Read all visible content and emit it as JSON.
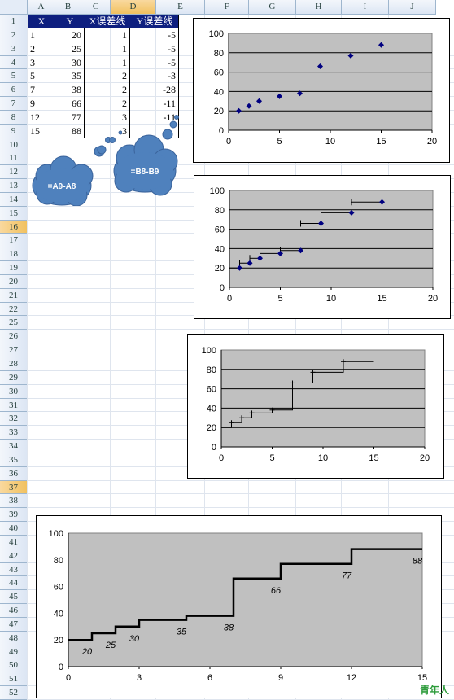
{
  "columns": [
    "A",
    "B",
    "C",
    "D",
    "E",
    "F",
    "G",
    "H",
    "I",
    "J"
  ],
  "selected_column": "D",
  "selected_rows": [
    "16",
    "37"
  ],
  "rows": [
    "1",
    "2",
    "3",
    "4",
    "5",
    "6",
    "7",
    "8",
    "9",
    "10",
    "11",
    "12",
    "13",
    "14",
    "15",
    "16",
    "17",
    "18",
    "19",
    "20",
    "21",
    "22",
    "25",
    "26",
    "27",
    "28",
    "29",
    "30",
    "31",
    "32",
    "33",
    "34",
    "35",
    "36",
    "37",
    "38",
    "39",
    "40",
    "41",
    "42",
    "43",
    "44",
    "45",
    "46",
    "47",
    "48",
    "49",
    "50",
    "51",
    "52"
  ],
  "table": {
    "headers": [
      "X",
      "Y",
      "X误差线",
      "Y误差线"
    ],
    "rows": [
      [
        "1",
        "20",
        "1",
        "-5"
      ],
      [
        "2",
        "25",
        "1",
        "-5"
      ],
      [
        "3",
        "30",
        "1",
        "-5"
      ],
      [
        "5",
        "35",
        "2",
        "-3"
      ],
      [
        "7",
        "38",
        "2",
        "-28"
      ],
      [
        "9",
        "66",
        "2",
        "-11"
      ],
      [
        "12",
        "77",
        "3",
        "-11"
      ],
      [
        "15",
        "88",
        "3",
        ""
      ]
    ]
  },
  "callouts": {
    "left": "=A9-A8",
    "right": "=B8-B9"
  },
  "colors": {
    "header_fill": "#0e1f7f",
    "plot_area": "#c0c0c0",
    "marker": "#000080",
    "callout": "#4f81bd"
  },
  "chart_data": [
    {
      "type": "scatter",
      "x": [
        1,
        2,
        3,
        5,
        7,
        9,
        12,
        15
      ],
      "y": [
        20,
        25,
        30,
        35,
        38,
        66,
        77,
        88
      ],
      "xlim": [
        0,
        20
      ],
      "ylim": [
        0,
        100
      ],
      "xticks": [
        "0",
        "5",
        "10",
        "15",
        "20"
      ],
      "yticks": [
        "0",
        "20",
        "40",
        "60",
        "80",
        "100"
      ],
      "grid": true
    },
    {
      "type": "scatter",
      "x": [
        1,
        2,
        3,
        5,
        7,
        9,
        12,
        15
      ],
      "y": [
        20,
        25,
        30,
        35,
        38,
        66,
        77,
        88
      ],
      "x_error_minus": [
        1,
        1,
        1,
        2,
        2,
        2,
        3,
        3
      ],
      "xlim": [
        0,
        20
      ],
      "ylim": [
        0,
        100
      ],
      "xticks": [
        "0",
        "5",
        "10",
        "15",
        "20"
      ],
      "yticks": [
        "0",
        "20",
        "40",
        "60",
        "80",
        "100"
      ],
      "grid": true
    },
    {
      "type": "line",
      "step_x": [
        0,
        1,
        2,
        3,
        5,
        7,
        9,
        12,
        15
      ],
      "step_y": [
        20,
        25,
        30,
        35,
        38,
        66,
        77,
        88,
        88
      ],
      "xlim": [
        0,
        20
      ],
      "ylim": [
        0,
        100
      ],
      "xticks": [
        "0",
        "5",
        "10",
        "15",
        "20"
      ],
      "yticks": [
        "0",
        "20",
        "40",
        "60",
        "80",
        "100"
      ],
      "grid": true
    },
    {
      "type": "line",
      "step_x": [
        0,
        1,
        2,
        3,
        5,
        7,
        9,
        12,
        15
      ],
      "step_y": [
        20,
        25,
        30,
        35,
        38,
        66,
        77,
        88,
        88
      ],
      "data_labels": [
        "20",
        "25",
        "30",
        "35",
        "38",
        "66",
        "77",
        "88"
      ],
      "label_x": [
        1,
        2,
        3,
        5,
        7,
        9,
        12,
        15
      ],
      "xlim": [
        0,
        15
      ],
      "ylim": [
        0,
        100
      ],
      "xticks": [
        "0",
        "3",
        "6",
        "9",
        "12",
        "15"
      ],
      "yticks": [
        "0",
        "20",
        "40",
        "60",
        "80",
        "100"
      ],
      "grid": false
    }
  ],
  "watermark": "青年人"
}
